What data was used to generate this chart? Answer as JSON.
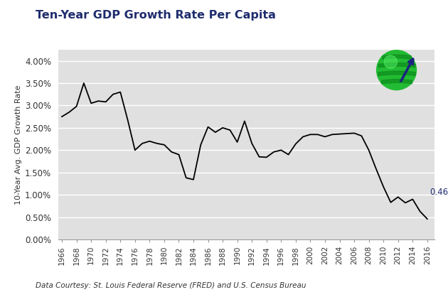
{
  "title": "Ten-Year GDP Growth Rate Per Capita",
  "ylabel": "10-Year Avg. GDP Growth Rate",
  "footnote": "Data Courtesy: St. Louis Federal Reserve (FRED) and U.S. Census Bureau",
  "annotation": "0.46%",
  "background_color": "#e0e0e0",
  "line_color": "#000000",
  "title_color": "#1f2d6e",
  "annotation_color": "#1f2d6e",
  "ylim": [
    0.0,
    0.0425
  ],
  "yticks": [
    0.0,
    0.005,
    0.01,
    0.015,
    0.02,
    0.025,
    0.03,
    0.035,
    0.04
  ],
  "ytick_labels": [
    "0.00%",
    "0.50%",
    "1.00%",
    "1.50%",
    "2.00%",
    "2.50%",
    "3.00%",
    "3.50%",
    "4.00%"
  ],
  "years": [
    1966,
    1967,
    1968,
    1969,
    1970,
    1971,
    1972,
    1973,
    1974,
    1975,
    1976,
    1977,
    1978,
    1979,
    1980,
    1981,
    1982,
    1983,
    1984,
    1985,
    1986,
    1987,
    1988,
    1989,
    1990,
    1991,
    1992,
    1993,
    1994,
    1995,
    1996,
    1997,
    1998,
    1999,
    2000,
    2001,
    2002,
    2003,
    2004,
    2005,
    2006,
    2007,
    2008,
    2009,
    2010,
    2011,
    2012,
    2013,
    2014,
    2015,
    2016
  ],
  "values": [
    0.0275,
    0.0285,
    0.0298,
    0.035,
    0.0305,
    0.031,
    0.0308,
    0.0325,
    0.033,
    0.0268,
    0.02,
    0.0215,
    0.022,
    0.0215,
    0.0212,
    0.0196,
    0.019,
    0.0138,
    0.0134,
    0.0212,
    0.0252,
    0.024,
    0.025,
    0.0245,
    0.0218,
    0.0265,
    0.0215,
    0.0185,
    0.0184,
    0.0196,
    0.02,
    0.019,
    0.0214,
    0.023,
    0.0235,
    0.0235,
    0.023,
    0.0235,
    0.0236,
    0.0237,
    0.0238,
    0.0232,
    0.02,
    0.0158,
    0.0118,
    0.0083,
    0.0095,
    0.0082,
    0.009,
    0.0063,
    0.0046
  ]
}
